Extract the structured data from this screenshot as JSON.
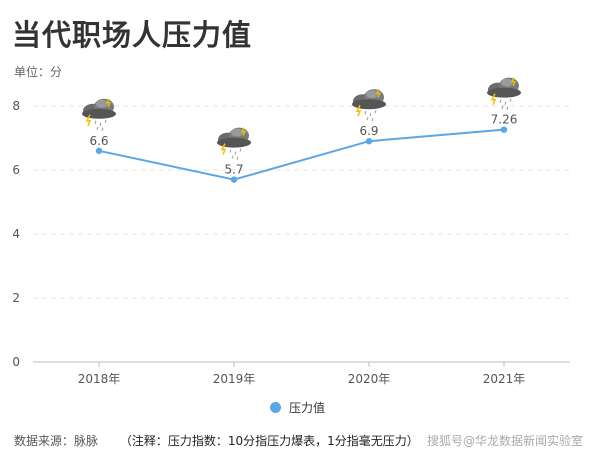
{
  "title": "当代职场人压力值",
  "unit": "单位：分",
  "legend_label": "压力值",
  "source": "数据来源：脉脉",
  "note": "（注释：压力指数：10分指压力爆表，1分指毫无压力）",
  "watermark": "搜狐号@华龙数据新闻实验室",
  "colors": {
    "line": "#5aa7e6",
    "label": "#555555",
    "grid": "#e3e3e3"
  },
  "icon": "storm-cloud-icon",
  "chart_data": {
    "type": "line",
    "categories": [
      "2018年",
      "2019年",
      "2020年",
      "2021年"
    ],
    "series": [
      {
        "name": "压力值",
        "values": [
          6.6,
          5.7,
          6.9,
          7.26
        ],
        "labels": [
          "6.6",
          "5.7",
          "6.9",
          "7.26"
        ]
      }
    ],
    "ylim": [
      0,
      8
    ],
    "yticks": [
      0,
      2,
      4,
      6,
      8
    ],
    "grid": true,
    "legend": "bottom"
  }
}
